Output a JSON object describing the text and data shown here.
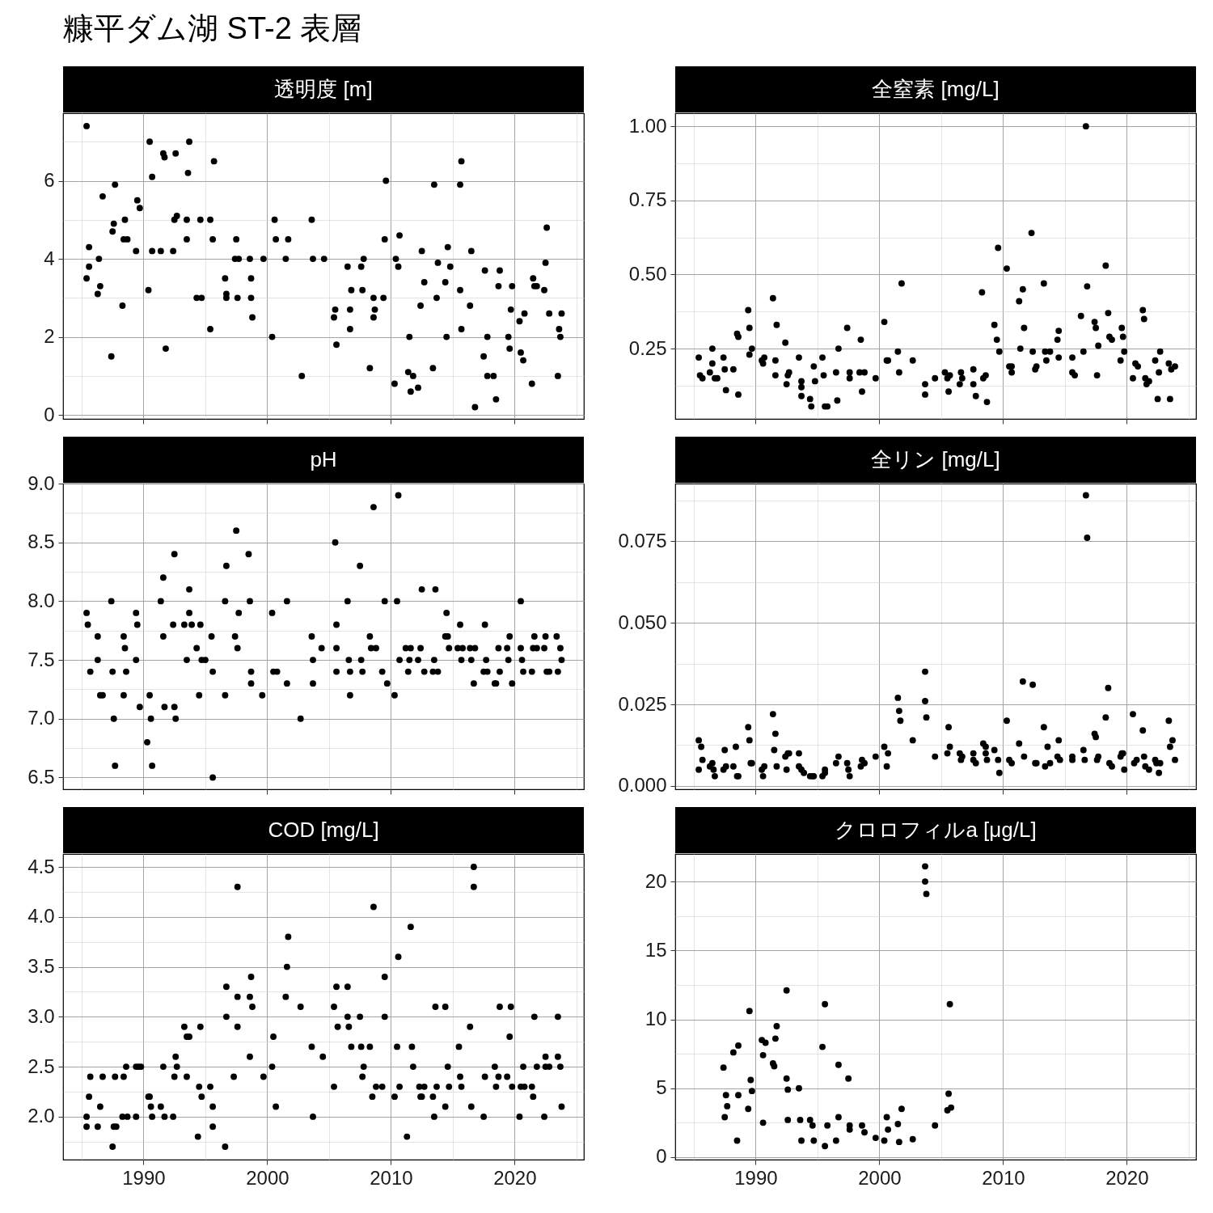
{
  "chart_data": [
    {
      "type": "scatter",
      "title": "透明度 [m]",
      "annotations": [
        "糠平ダム湖 ST-2 表層"
      ],
      "color": "#000000",
      "marker": "circle",
      "grid": true,
      "tick_labels": "y",
      "xlim": [
        1983.5,
        2025.6
      ],
      "xticks": [
        1990,
        2000,
        2010,
        2020
      ],
      "ylim": [
        -0.1,
        7.73
      ],
      "yticks": [
        0,
        2,
        4,
        6
      ],
      "x": [
        1985.4,
        1985.4,
        1985.6,
        1985.6,
        1986.3,
        1986.5,
        1986.4,
        1986.7,
        1987.4,
        1987.5,
        1987.6,
        1987.7,
        1988.3,
        1988.4,
        1988.5,
        1988.7,
        1989.4,
        1989.5,
        1989.7,
        1990.4,
        1990.5,
        1990.7,
        1990.7,
        1991.4,
        1991.6,
        1991.7,
        1991.8,
        1992.4,
        1992.5,
        1992.6,
        1992.7,
        1993.5,
        1993.6,
        1993.7,
        1993.5,
        1994.3,
        1994.6,
        1994.7,
        1995.4,
        1995.4,
        1995.6,
        1995.7,
        1996.6,
        1996.7,
        1996.7,
        1997.5,
        1997.4,
        1997.6,
        1997.7,
        1998.6,
        1998.7,
        1998.7,
        1998.8,
        1999.7,
        2000.4,
        2000.6,
        2000.7,
        2001.5,
        2001.7,
        2002.8,
        2003.6,
        2003.7,
        2004.6,
        2005.4,
        2005.5,
        2005.6,
        2006.5,
        2006.7,
        2006.7,
        2006.8,
        2007.6,
        2007.7,
        2007.8,
        2008.3,
        2008.6,
        2008.6,
        2008.7,
        2009.4,
        2009.5,
        2009.6,
        2010.3,
        2010.4,
        2010.6,
        2010.7,
        2011.5,
        2011.4,
        2011.6,
        2011.8,
        2012.2,
        2012.4,
        2012.5,
        2012.7,
        2013.4,
        2013.5,
        2013.7,
        2013.8,
        2014.4,
        2014.5,
        2014.6,
        2014.8,
        2015.6,
        2015.7,
        2015.6,
        2015.7,
        2016.4,
        2016.5,
        2016.8,
        2017.5,
        2017.6,
        2017.8,
        2017.8,
        2018.3,
        2018.5,
        2018.7,
        2018.8,
        2019.5,
        2019.6,
        2019.7,
        2019.8,
        2020.4,
        2020.5,
        2020.7,
        2020.8,
        2021.4,
        2021.5,
        2021.6,
        2021.8,
        2022.4,
        2022.5,
        2022.6,
        2022.8,
        2023.5,
        2023.6,
        2023.7,
        2023.8
      ],
      "values": [
        7.4,
        3.5,
        4.3,
        3.8,
        3.1,
        3.3,
        4.0,
        5.6,
        1.5,
        4.7,
        4.9,
        5.9,
        2.8,
        4.5,
        5.0,
        4.5,
        4.2,
        5.5,
        5.3,
        3.2,
        7.0,
        6.1,
        4.2,
        4.2,
        6.7,
        6.6,
        1.7,
        4.2,
        5.0,
        6.7,
        5.1,
        4.5,
        6.2,
        7.0,
        5.0,
        3.0,
        5.0,
        3.0,
        5.0,
        2.2,
        4.5,
        6.5,
        3.5,
        3.1,
        3.0,
        4.5,
        4.0,
        3.0,
        4.0,
        4.0,
        3.5,
        3.0,
        2.5,
        4.0,
        2.0,
        5.0,
        4.5,
        4.0,
        4.5,
        1.0,
        5.0,
        4.0,
        4.0,
        2.5,
        2.7,
        1.8,
        3.8,
        2.2,
        2.7,
        3.2,
        3.8,
        3.2,
        4.0,
        1.2,
        3.0,
        2.5,
        2.7,
        3.0,
        4.5,
        6.0,
        0.8,
        4.0,
        3.8,
        4.6,
        2.0,
        1.1,
        0.6,
        1.0,
        0.7,
        2.8,
        4.2,
        3.4,
        1.2,
        5.9,
        3.0,
        3.9,
        3.4,
        2.0,
        4.3,
        3.8,
        5.9,
        6.5,
        3.2,
        2.2,
        2.8,
        4.2,
        0.2,
        1.5,
        3.7,
        2.0,
        1.0,
        1.0,
        0.4,
        3.3,
        3.7,
        2.0,
        1.7,
        2.7,
        3.3,
        2.4,
        1.6,
        1.4,
        2.6,
        0.8,
        3.5,
        3.3,
        3.3,
        3.2,
        3.9,
        4.8,
        2.6,
        1.0,
        2.2,
        2.0,
        2.6
      ]
    },
    {
      "type": "scatter",
      "title": "全窒素 [mg/L]",
      "color": "#000000",
      "marker": "circle",
      "grid": true,
      "tick_labels": "y",
      "xlim": [
        1983.5,
        2025.6
      ],
      "xticks": [
        1990,
        2000,
        2010,
        2020
      ],
      "ylim": [
        0.013,
        1.044
      ],
      "yticks": [
        0.25,
        {
          "value": 0.5,
          "label": "0.50"
        },
        0.75,
        {
          "value": 1,
          "label": "1.00"
        }
      ],
      "x": [
        1985.4,
        1985.5,
        1985.7,
        1986.3,
        1986.5,
        1986.5,
        1986.7,
        1986.9,
        1987.4,
        1987.5,
        1987.6,
        1988.2,
        1988.5,
        1988.6,
        1988.6,
        1989.4,
        1989.5,
        1989.5,
        1989.7,
        1990.5,
        1990.6,
        1990.7,
        1991.4,
        1991.6,
        1991.7,
        1991.6,
        1992.4,
        1992.5,
        1992.6,
        1992.7,
        1993.5,
        1993.7,
        1993.7,
        1993.7,
        1994.4,
        1994.5,
        1994.7,
        1994.8,
        1995.4,
        1995.5,
        1995.6,
        1995.8,
        1996.5,
        1996.6,
        1996.7,
        1997.4,
        1997.6,
        1997.6,
        1998.4,
        1998.5,
        1998.6,
        1998.8,
        1999.7,
        2000.4,
        2000.6,
        2000.7,
        2001.5,
        2001.6,
        2001.8,
        2002.7,
        2003.7,
        2003.7,
        2004.5,
        2005.3,
        2005.5,
        2005.6,
        2005.7,
        2006.5,
        2006.6,
        2006.7,
        2007.6,
        2007.6,
        2007.8,
        2008.3,
        2008.4,
        2008.6,
        2008.7,
        2009.3,
        2009.5,
        2009.6,
        2009.7,
        2010.3,
        2010.5,
        2010.7,
        2010.7,
        2011.3,
        2011.4,
        2011.6,
        2011.7,
        2012.3,
        2012.4,
        2012.6,
        2012.7,
        2013.3,
        2013.4,
        2013.5,
        2013.8,
        2014.4,
        2014.5,
        2014.5,
        2015.6,
        2015.6,
        2015.8,
        2016.3,
        2016.5,
        2016.7,
        2016.8,
        2017.4,
        2017.5,
        2017.6,
        2017.7,
        2018.3,
        2018.5,
        2018.6,
        2018.8,
        2019.5,
        2019.6,
        2019.7,
        2019.8,
        2020.5,
        2020.7,
        2020.9,
        2021.3,
        2021.4,
        2021.5,
        2021.6,
        2021.8,
        2022.3,
        2022.5,
        2022.7,
        2022.6,
        2023.4,
        2023.5,
        2023.6,
        2023.9
      ],
      "values": [
        0.22,
        0.16,
        0.15,
        0.17,
        0.25,
        0.2,
        0.15,
        0.15,
        0.22,
        0.18,
        0.11,
        0.18,
        0.3,
        0.29,
        0.095,
        0.38,
        0.32,
        0.23,
        0.25,
        0.21,
        0.2,
        0.22,
        0.42,
        0.21,
        0.33,
        0.16,
        0.27,
        0.13,
        0.16,
        0.17,
        0.22,
        0.14,
        0.12,
        0.09,
        0.08,
        0.055,
        0.19,
        0.14,
        0.22,
        0.16,
        0.055,
        0.055,
        0.17,
        0.075,
        0.25,
        0.32,
        0.17,
        0.15,
        0.17,
        0.28,
        0.105,
        0.17,
        0.15,
        0.34,
        0.21,
        0.21,
        0.24,
        0.17,
        0.47,
        0.21,
        0.13,
        0.095,
        0.15,
        0.17,
        0.15,
        0.105,
        0.16,
        0.13,
        0.17,
        0.15,
        0.18,
        0.13,
        0.09,
        0.44,
        0.15,
        0.16,
        0.07,
        0.33,
        0.28,
        0.59,
        0.24,
        0.52,
        0.19,
        0.17,
        0.19,
        0.41,
        0.25,
        0.45,
        0.32,
        0.64,
        0.24,
        0.18,
        0.19,
        0.47,
        0.24,
        0.21,
        0.24,
        0.28,
        0.31,
        0.22,
        0.22,
        0.17,
        0.16,
        0.36,
        0.24,
        1.0,
        0.46,
        0.34,
        0.32,
        0.16,
        0.26,
        0.53,
        0.37,
        0.29,
        0.28,
        0.21,
        0.32,
        0.29,
        0.24,
        0.15,
        0.2,
        0.19,
        0.38,
        0.35,
        0.15,
        0.13,
        0.14,
        0.21,
        0.08,
        0.24,
        0.17,
        0.2,
        0.08,
        0.18,
        0.19
      ]
    },
    {
      "type": "scatter",
      "title": "pH",
      "color": "#000000",
      "marker": "circle",
      "grid": true,
      "tick_labels": "y",
      "xlim": [
        1983.5,
        2025.6
      ],
      "xticks": [
        1990,
        2000,
        2010,
        2020
      ],
      "ylim": [
        6.4,
        9.0
      ],
      "yticks": [
        6.5,
        {
          "value": 7,
          "label": "7.0"
        },
        7.5,
        {
          "value": 8,
          "label": "8.0"
        },
        8.5,
        {
          "value": 9,
          "label": "9.0"
        }
      ],
      "x": [
        1985.4,
        1985.5,
        1985.7,
        1986.3,
        1986.3,
        1986.5,
        1986.7,
        1987.4,
        1987.5,
        1987.6,
        1987.7,
        1988.4,
        1988.5,
        1988.4,
        1988.6,
        1989.4,
        1989.5,
        1989.4,
        1989.7,
        1990.5,
        1990.3,
        1990.6,
        1990.7,
        1991.4,
        1991.6,
        1991.6,
        1991.7,
        1992.4,
        1992.5,
        1992.5,
        1992.6,
        1993.3,
        1993.5,
        1993.7,
        1993.7,
        1993.9,
        1994.3,
        1994.5,
        1994.7,
        1994.6,
        1995.0,
        1995.5,
        1995.6,
        1995.6,
        1996.6,
        1996.7,
        1996.6,
        1997.4,
        1997.5,
        1997.6,
        1997.7,
        1998.5,
        1998.6,
        1998.7,
        1998.7,
        1999.6,
        2000.4,
        2000.5,
        2000.8,
        2001.6,
        2001.6,
        2002.7,
        2003.6,
        2003.7,
        2003.7,
        2004.4,
        2005.5,
        2005.6,
        2005.6,
        2005.6,
        2006.5,
        2006.6,
        2006.7,
        2006.7,
        2007.5,
        2007.6,
        2007.7,
        2008.3,
        2008.4,
        2008.6,
        2008.8,
        2009.3,
        2009.5,
        2009.7,
        2010.3,
        2010.5,
        2010.6,
        2010.7,
        2011.2,
        2011.4,
        2011.5,
        2011.6,
        2012.2,
        2012.4,
        2012.5,
        2012.7,
        2013.4,
        2013.5,
        2013.6,
        2013.8,
        2014.4,
        2014.5,
        2014.6,
        2014.7,
        2015.4,
        2015.6,
        2015.7,
        2015.8,
        2016.4,
        2016.5,
        2016.7,
        2016.8,
        2017.5,
        2017.6,
        2017.7,
        2017.8,
        2018.4,
        2018.5,
        2018.7,
        2018.8,
        2019.4,
        2019.5,
        2019.6,
        2019.8,
        2020.5,
        2020.5,
        2020.6,
        2020.7,
        2021.4,
        2021.5,
        2021.6,
        2021.8,
        2022.4,
        2022.5,
        2022.6,
        2022.8,
        2023.4,
        2023.5,
        2023.7,
        2023.8
      ],
      "values": [
        7.9,
        7.8,
        7.4,
        7.7,
        7.5,
        7.2,
        7.2,
        8.0,
        7.4,
        7.0,
        6.6,
        7.7,
        7.6,
        7.2,
        7.4,
        7.9,
        7.8,
        7.5,
        7.1,
        7.2,
        6.8,
        7.0,
        6.6,
        8.0,
        8.2,
        7.7,
        7.1,
        7.8,
        8.4,
        7.1,
        7.0,
        7.8,
        7.5,
        8.1,
        7.9,
        7.8,
        7.6,
        7.2,
        7.5,
        7.8,
        7.5,
        7.7,
        6.5,
        7.4,
        8.0,
        8.3,
        7.2,
        7.7,
        8.6,
        7.6,
        7.9,
        8.4,
        8.0,
        7.4,
        7.3,
        7.2,
        7.9,
        7.4,
        7.4,
        8.0,
        7.3,
        7.0,
        7.7,
        7.5,
        7.3,
        7.6,
        8.5,
        7.8,
        7.6,
        7.4,
        8.0,
        7.5,
        7.2,
        7.4,
        8.3,
        7.5,
        7.4,
        7.7,
        7.6,
        8.8,
        7.6,
        7.4,
        8.0,
        7.3,
        7.2,
        8.0,
        8.9,
        7.5,
        7.6,
        7.4,
        7.5,
        7.6,
        7.5,
        7.6,
        8.1,
        7.4,
        7.4,
        7.5,
        8.1,
        7.4,
        7.7,
        7.9,
        7.7,
        7.6,
        7.6,
        7.8,
        7.5,
        7.6,
        7.6,
        7.5,
        7.3,
        7.6,
        7.4,
        7.8,
        7.5,
        7.4,
        7.3,
        7.3,
        7.6,
        7.4,
        7.6,
        7.5,
        7.7,
        7.3,
        8.0,
        7.6,
        7.5,
        7.4,
        7.4,
        7.6,
        7.7,
        7.6,
        7.6,
        7.7,
        7.4,
        7.4,
        7.7,
        7.4,
        7.6,
        7.5
      ]
    },
    {
      "type": "scatter",
      "title": "全リン [mg/L]",
      "color": "#000000",
      "marker": "circle",
      "grid": true,
      "tick_labels": "y",
      "xlim": [
        1983.5,
        2025.6
      ],
      "xticks": [
        1990,
        2000,
        2010,
        2020
      ],
      "ylim": [
        -0.001,
        0.0926
      ],
      "yticks": [
        {
          "value": 0,
          "label": "0.000"
        },
        0.025,
        {
          "value": 0.05,
          "label": "0.050"
        },
        0.075
      ],
      "x": [
        1985.4,
        1985.4,
        1985.6,
        1985.7,
        1986.3,
        1986.5,
        1986.6,
        1986.7,
        1987.4,
        1987.5,
        1987.6,
        1988.2,
        1988.4,
        1988.5,
        1988.6,
        1989.4,
        1989.5,
        1989.6,
        1989.7,
        1990.5,
        1990.6,
        1990.7,
        1991.4,
        1991.6,
        1991.5,
        1991.7,
        1992.4,
        1992.5,
        1992.6,
        1992.7,
        1993.5,
        1993.5,
        1993.7,
        1993.9,
        1994.4,
        1994.6,
        1994.7,
        1995.4,
        1995.6,
        1995.6,
        1996.5,
        1996.7,
        1997.4,
        1997.5,
        1997.6,
        1998.5,
        1998.6,
        1998.8,
        1999.7,
        2000.4,
        2000.6,
        2000.7,
        2001.5,
        2001.6,
        2001.7,
        2002.7,
        2003.7,
        2003.7,
        2003.8,
        2004.5,
        2005.5,
        2005.6,
        2005.7,
        2006.5,
        2006.6,
        2006.7,
        2007.6,
        2007.6,
        2007.8,
        2008.4,
        2008.6,
        2008.6,
        2008.7,
        2009.3,
        2009.6,
        2009.7,
        2010.3,
        2010.5,
        2010.7,
        2011.3,
        2011.6,
        2011.7,
        2012.4,
        2012.6,
        2012.7,
        2013.3,
        2013.4,
        2013.6,
        2013.8,
        2014.4,
        2014.5,
        2014.6,
        2015.6,
        2015.6,
        2016.5,
        2016.6,
        2016.7,
        2016.8,
        2017.4,
        2017.5,
        2017.6,
        2017.7,
        2018.3,
        2018.5,
        2018.6,
        2018.8,
        2019.5,
        2019.6,
        2019.7,
        2019.8,
        2020.5,
        2020.6,
        2020.8,
        2021.3,
        2021.4,
        2021.5,
        2021.8,
        2022.3,
        2022.4,
        2022.6,
        2022.7,
        2023.4,
        2023.5,
        2023.7,
        2023.9
      ],
      "values": [
        0.005,
        0.014,
        0.012,
        0.008,
        0.006,
        0.007,
        0.005,
        0.003,
        0.005,
        0.011,
        0.006,
        0.006,
        0.012,
        0.003,
        0.003,
        0.018,
        0.014,
        0.007,
        0.007,
        0.005,
        0.003,
        0.006,
        0.022,
        0.016,
        0.011,
        0.006,
        0.009,
        0.005,
        0.01,
        0.01,
        0.01,
        0.006,
        0.005,
        0.004,
        0.003,
        0.003,
        0.003,
        0.003,
        0.004,
        0.005,
        0.007,
        0.009,
        0.007,
        0.005,
        0.003,
        0.006,
        0.008,
        0.007,
        0.009,
        0.012,
        0.006,
        0.01,
        0.027,
        0.023,
        0.02,
        0.014,
        0.035,
        0.026,
        0.021,
        0.009,
        0.01,
        0.018,
        0.012,
        0.01,
        0.008,
        0.009,
        0.01,
        0.008,
        0.007,
        0.013,
        0.01,
        0.012,
        0.008,
        0.011,
        0.008,
        0.004,
        0.02,
        0.008,
        0.007,
        0.013,
        0.032,
        0.009,
        0.031,
        0.007,
        0.007,
        0.018,
        0.006,
        0.012,
        0.007,
        0.009,
        0.014,
        0.008,
        0.008,
        0.009,
        0.011,
        0.008,
        0.089,
        0.076,
        0.016,
        0.015,
        0.008,
        0.009,
        0.021,
        0.03,
        0.007,
        0.006,
        0.009,
        0.01,
        0.01,
        0.005,
        0.022,
        0.007,
        0.008,
        0.017,
        0.009,
        0.006,
        0.005,
        0.008,
        0.007,
        0.004,
        0.007,
        0.02,
        0.012,
        0.014,
        0.008
      ]
    },
    {
      "type": "scatter",
      "title": "COD [mg/L]",
      "color": "#000000",
      "marker": "circle",
      "grid": true,
      "xlim": [
        1983.5,
        2025.6
      ],
      "xticks": [
        1990,
        2000,
        2010,
        2020
      ],
      "ylim": [
        1.57,
        4.63
      ],
      "yticks": [
        {
          "value": 2,
          "label": "2.0"
        },
        2.5,
        {
          "value": 3,
          "label": "3.0"
        },
        3.5,
        {
          "value": 4,
          "label": "4.0"
        },
        4.5
      ],
      "x": [
        1985.4,
        1985.4,
        1985.6,
        1985.7,
        1986.3,
        1986.5,
        1986.7,
        1987.5,
        1987.6,
        1987.7,
        1987.8,
        1988.4,
        1988.3,
        1988.6,
        1988.7,
        1989.4,
        1989.4,
        1989.6,
        1989.8,
        1990.4,
        1990.5,
        1990.6,
        1990.7,
        1991.4,
        1991.6,
        1991.7,
        1992.4,
        1992.5,
        1992.6,
        1992.7,
        1993.3,
        1993.5,
        1993.7,
        1993.5,
        1994.4,
        1994.5,
        1994.6,
        1994.7,
        1995.4,
        1995.6,
        1995.6,
        1996.6,
        1996.7,
        1996.7,
        1997.3,
        1997.6,
        1997.6,
        1997.6,
        1998.6,
        1998.6,
        1998.7,
        1998.8,
        1999.7,
        2000.4,
        2000.5,
        2000.7,
        2001.5,
        2001.6,
        2001.7,
        2002.7,
        2003.6,
        2003.7,
        2004.5,
        2005.4,
        2005.6,
        2005.7,
        2005.4,
        2006.5,
        2006.5,
        2006.6,
        2006.8,
        2007.5,
        2007.6,
        2007.8,
        2007.7,
        2008.3,
        2008.5,
        2008.6,
        2008.8,
        2009.3,
        2009.5,
        2009.5,
        2010.3,
        2010.5,
        2010.6,
        2010.7,
        2011.3,
        2011.6,
        2011.7,
        2011.8,
        2012.3,
        2012.4,
        2012.5,
        2012.7,
        2013.4,
        2013.5,
        2013.6,
        2013.7,
        2014.4,
        2014.4,
        2014.6,
        2014.7,
        2015.5,
        2015.6,
        2015.7,
        2016.4,
        2016.5,
        2016.7,
        2016.7,
        2017.5,
        2017.6,
        2018.4,
        2018.5,
        2018.8,
        2018.7,
        2019.4,
        2019.6,
        2019.7,
        2019.8,
        2020.4,
        2020.5,
        2020.7,
        2020.8,
        2021.4,
        2021.5,
        2021.6,
        2021.8,
        2022.4,
        2022.5,
        2022.5,
        2022.8,
        2023.5,
        2023.5,
        2023.7,
        2023.8
      ],
      "values": [
        2.0,
        1.9,
        2.2,
        2.4,
        1.9,
        2.1,
        2.4,
        1.7,
        1.9,
        2.4,
        1.9,
        2.4,
        2.0,
        2.5,
        2.0,
        2.5,
        2.0,
        2.5,
        2.5,
        2.2,
        2.2,
        2.1,
        2.0,
        2.1,
        2.5,
        2.0,
        2.0,
        2.4,
        2.6,
        2.5,
        2.9,
        2.8,
        2.8,
        2.4,
        1.8,
        2.3,
        2.9,
        2.2,
        2.3,
        1.9,
        2.1,
        1.7,
        3.3,
        3.0,
        2.4,
        2.9,
        4.3,
        3.2,
        3.2,
        2.6,
        3.4,
        3.1,
        2.4,
        2.5,
        2.8,
        2.1,
        3.2,
        3.5,
        3.8,
        3.1,
        2.7,
        2.0,
        2.6,
        3.1,
        3.3,
        2.9,
        2.3,
        3.3,
        3.0,
        2.9,
        2.7,
        3.0,
        2.7,
        2.5,
        2.4,
        2.7,
        2.2,
        4.1,
        2.3,
        2.3,
        3.0,
        3.4,
        2.2,
        2.7,
        3.6,
        2.3,
        1.8,
        3.9,
        2.7,
        2.5,
        2.3,
        2.2,
        2.2,
        2.3,
        2.2,
        2.0,
        3.1,
        2.3,
        2.1,
        3.1,
        2.5,
        2.3,
        2.7,
        2.4,
        2.3,
        2.9,
        2.1,
        4.5,
        4.3,
        2.0,
        2.4,
        2.5,
        2.3,
        3.1,
        2.4,
        2.4,
        2.8,
        3.1,
        2.3,
        2.0,
        2.3,
        2.5,
        2.3,
        2.3,
        2.2,
        3.0,
        2.5,
        2.0,
        2.5,
        2.6,
        2.5,
        3.0,
        2.6,
        2.5,
        2.1
      ]
    },
    {
      "type": "scatter",
      "title": "クロロフィルa [μg/L]",
      "color": "#000000",
      "marker": "circle",
      "grid": true,
      "xlim": [
        1983.5,
        2025.6
      ],
      "xticks": [
        1990,
        2000,
        2010,
        2020
      ],
      "ylim": [
        -0.18,
        22
      ],
      "yticks": [
        0,
        5,
        10,
        15,
        20
      ],
      "x": [
        1987.4,
        1987.5,
        1987.6,
        1987.7,
        1988.2,
        1988.5,
        1988.6,
        1988.6,
        1989.4,
        1989.5,
        1989.6,
        1989.7,
        1990.5,
        1990.6,
        1990.6,
        1990.8,
        1991.4,
        1991.5,
        1991.6,
        1991.7,
        1992.5,
        1992.5,
        1992.6,
        1992.6,
        1993.5,
        1993.6,
        1993.7,
        1994.4,
        1994.6,
        1994.7,
        1995.4,
        1995.6,
        1995.6,
        1995.8,
        1996.5,
        1996.7,
        1996.7,
        1997.5,
        1997.6,
        1997.6,
        1998.6,
        1998.8,
        1999.7,
        2000.4,
        2000.6,
        2000.7,
        2001.5,
        2001.6,
        2001.8,
        2002.7,
        2003.7,
        2003.7,
        2003.8,
        2004.5,
        2005.5,
        2005.6,
        2005.7,
        2005.8
      ],
      "values": [
        6.5,
        2.9,
        4.5,
        3.7,
        7.6,
        1.2,
        4.5,
        8.1,
        3.5,
        10.6,
        5.6,
        4.8,
        8.5,
        2.5,
        7.4,
        8.3,
        6.8,
        6.6,
        8.6,
        9.5,
        12.1,
        5.7,
        4.9,
        2.7,
        5.0,
        2.7,
        1.2,
        2.7,
        2.3,
        1.2,
        8.0,
        11.1,
        0.8,
        2.3,
        1.2,
        6.7,
        2.9,
        5.7,
        2.3,
        2.0,
        2.3,
        1.8,
        1.4,
        1.2,
        2.9,
        2.0,
        2.4,
        1.1,
        3.5,
        1.3,
        21.1,
        20.0,
        19.1,
        2.3,
        3.4,
        4.6,
        11.1,
        3.6
      ]
    }
  ]
}
